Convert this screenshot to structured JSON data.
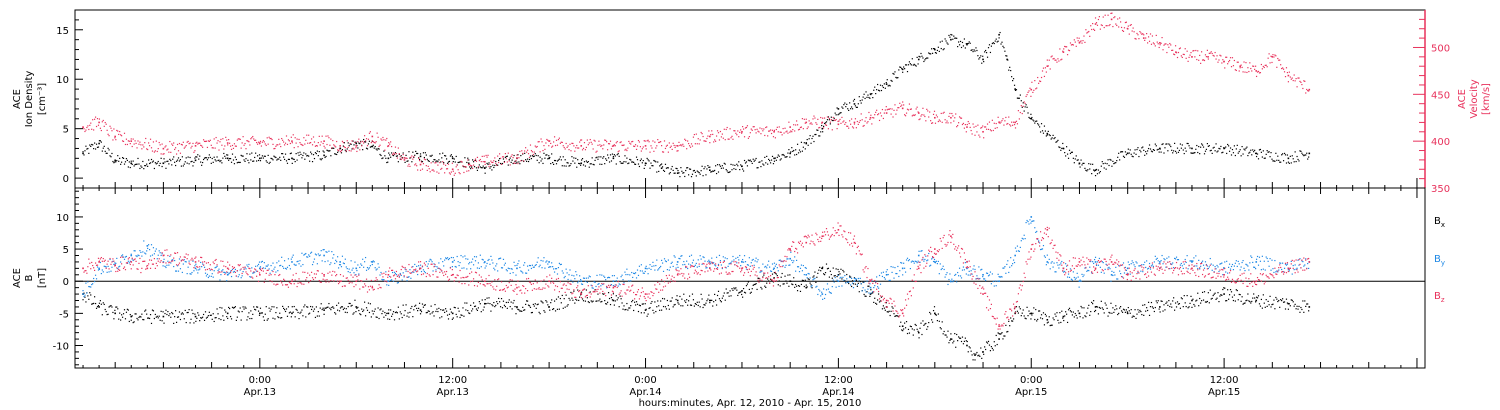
{
  "colors": {
    "black": "#000000",
    "pink": "#e8325c",
    "blue": "#1e88e5",
    "frame": "#000000",
    "background": "#ffffff"
  },
  "xaxis": {
    "label": "hours:minutes, Apr. 12, 2010 - Apr. 15, 2010",
    "range_hours": [
      -5.5,
      78.5
    ],
    "ticks": [
      {
        "hours": 6,
        "time": "0:00",
        "date": "Apr.13"
      },
      {
        "hours": 18,
        "time": "12:00",
        "date": "Apr.13"
      },
      {
        "hours": 30,
        "time": "0:00",
        "date": "Apr.14"
      },
      {
        "hours": 42,
        "time": "12:00",
        "date": "Apr.14"
      },
      {
        "hours": 54,
        "time": "0:00",
        "date": "Apr.15"
      },
      {
        "hours": 66,
        "time": "12:00",
        "date": "Apr.15"
      }
    ],
    "minor_step_hours": 1
  },
  "chart_data": [
    {
      "type": "scatter",
      "ylabel_left": [
        "ACE",
        "Ion Density",
        "[cm⁻³]"
      ],
      "ylabel_right": [
        "ACE",
        "Velocity",
        "[km/s]"
      ],
      "ylim_left": [
        -1,
        17
      ],
      "ylim_right": [
        350,
        540
      ],
      "yticks_left": [
        0,
        5,
        10,
        15
      ],
      "yticks_right": [
        350,
        400,
        450,
        500
      ],
      "series": [
        {
          "name": "",
          "axis": "left",
          "color": "black",
          "x": [
            -5,
            -4,
            -3,
            -2,
            0,
            2,
            4,
            6,
            8,
            10,
            11,
            12,
            13,
            14,
            16,
            18,
            19,
            20,
            22,
            24,
            26,
            28,
            30,
            31,
            32,
            34,
            36,
            38,
            39,
            40,
            41,
            42,
            43,
            44,
            45,
            46,
            47,
            48,
            49,
            50,
            51,
            52,
            52.5,
            53,
            54,
            55,
            56,
            57,
            58,
            60,
            62,
            64,
            66,
            68,
            70,
            71.3
          ],
          "y": [
            2.5,
            3.5,
            1.8,
            1.5,
            1.5,
            1.8,
            2.0,
            2.0,
            2.0,
            2.3,
            3.0,
            3.5,
            3.2,
            2.0,
            2.2,
            2.0,
            1.5,
            1.0,
            2.0,
            2.0,
            1.5,
            2.0,
            1.5,
            1.0,
            0.5,
            0.8,
            1.2,
            2.0,
            2.5,
            3.5,
            5.0,
            7.0,
            7.5,
            8.5,
            9.5,
            11.0,
            12.0,
            13.0,
            14.0,
            13.5,
            12.0,
            14.5,
            12.0,
            9.0,
            6.0,
            4.5,
            3.0,
            1.5,
            0.8,
            2.5,
            3.0,
            3.0,
            3.0,
            2.5,
            2.0,
            2.5
          ]
        },
        {
          "name": "",
          "axis": "right",
          "color": "pink",
          "x": [
            -5,
            -4,
            -3,
            -2,
            0,
            2,
            4,
            6,
            8,
            10,
            11,
            12,
            13,
            14,
            15,
            16,
            18,
            19,
            20,
            22,
            24,
            26,
            28,
            30,
            32,
            34,
            36,
            38,
            39,
            40,
            41,
            42,
            43,
            44,
            45,
            46,
            47,
            48,
            49,
            50,
            51,
            52,
            53,
            54,
            55,
            56,
            57,
            58,
            59,
            60,
            61,
            62,
            63,
            64,
            65,
            66,
            67,
            68,
            69,
            70,
            71.3
          ],
          "y": [
            415,
            420,
            405,
            400,
            392,
            395,
            398,
            398,
            400,
            400,
            395,
            395,
            405,
            395,
            380,
            375,
            370,
            375,
            378,
            382,
            400,
            395,
            395,
            395,
            395,
            405,
            410,
            410,
            415,
            420,
            420,
            418,
            420,
            425,
            430,
            435,
            430,
            425,
            425,
            415,
            410,
            420,
            420,
            455,
            480,
            495,
            505,
            525,
            530,
            520,
            510,
            505,
            495,
            490,
            490,
            485,
            480,
            475,
            490,
            470,
            455
          ]
        }
      ]
    },
    {
      "type": "scatter",
      "ylabel_left": [
        "ACE",
        "B",
        "[nT]"
      ],
      "ylim_left": [
        -13.5,
        14.5
      ],
      "yticks_left": [
        -10,
        -5,
        0,
        5,
        10
      ],
      "zero_line": true,
      "legend": [
        "Bx",
        "By",
        "Bz"
      ],
      "series": [
        {
          "name": "Bx",
          "color": "black",
          "x": [
            -5,
            -4,
            -3,
            -2,
            0,
            2,
            4,
            6,
            8,
            10,
            12,
            14,
            16,
            18,
            20,
            22,
            24,
            26,
            28,
            30,
            32,
            34,
            36,
            38,
            39,
            40,
            41,
            42,
            43,
            44,
            45,
            46,
            47,
            48,
            49,
            50,
            50.5,
            51,
            52,
            53,
            54,
            55,
            56,
            57,
            58,
            60,
            62,
            64,
            66,
            68,
            70,
            71.3
          ],
          "y": [
            -2,
            -4,
            -5,
            -5.5,
            -5.5,
            -5.5,
            -5,
            -5,
            -5,
            -4.5,
            -4,
            -5,
            -4.5,
            -5,
            -3.5,
            -4,
            -4,
            -2,
            -3,
            -4.5,
            -3,
            -3,
            -1.5,
            0.5,
            0,
            -1,
            2,
            1,
            0,
            -2,
            -4,
            -7,
            -8,
            -5,
            -9,
            -10,
            -11.5,
            -11,
            -9,
            -5,
            -5,
            -6,
            -5.5,
            -5,
            -4,
            -5,
            -4,
            -3,
            -2,
            -3,
            -3.5,
            -4
          ]
        },
        {
          "name": "By",
          "color": "blue",
          "x": [
            -5,
            -4,
            -3,
            -2,
            -1,
            0,
            2,
            4,
            6,
            8,
            10,
            11,
            12,
            13,
            14,
            16,
            18,
            20,
            22,
            24,
            26,
            28,
            30,
            32,
            34,
            36,
            38,
            39,
            40,
            41,
            42,
            43,
            44,
            45,
            46,
            47,
            48,
            49,
            50,
            51,
            52,
            53,
            54,
            55,
            56,
            57,
            58,
            59,
            60,
            62,
            64,
            66,
            68,
            70,
            71.3
          ],
          "y": [
            -2,
            2,
            2.5,
            4,
            5.5,
            3,
            2,
            1,
            2,
            3,
            4,
            3,
            2,
            3,
            0,
            2,
            3,
            3,
            2,
            3,
            0,
            0,
            2,
            3,
            3,
            3,
            2,
            3.5,
            1,
            -2,
            0,
            0,
            -1,
            1,
            2,
            4,
            3,
            0,
            2,
            1,
            0,
            4,
            10,
            3,
            2,
            0,
            3,
            1,
            2,
            3,
            3,
            2,
            3,
            2,
            3
          ]
        },
        {
          "name": "Bz",
          "color": "pink",
          "x": [
            -5,
            -4,
            -3,
            -2,
            -1,
            0,
            2,
            4,
            6,
            8,
            10,
            11,
            12,
            13,
            14,
            16,
            18,
            20,
            22,
            24,
            26,
            28,
            30,
            32,
            34,
            36,
            38,
            39,
            40,
            41,
            42,
            43,
            44,
            45,
            46,
            47,
            48,
            49,
            50,
            51,
            52,
            53,
            54,
            55,
            56,
            57,
            58,
            59,
            60,
            62,
            64,
            66,
            68,
            70,
            71.3
          ],
          "y": [
            2,
            3,
            2.5,
            3,
            2,
            4,
            3,
            2,
            1,
            0,
            1,
            0,
            0,
            -1,
            1,
            2,
            1,
            0,
            -1,
            0,
            -2,
            -1,
            -2,
            1,
            2,
            2,
            0,
            5,
            6,
            7,
            8,
            6,
            0,
            -3,
            -5,
            2,
            5,
            7,
            3,
            -2,
            -7,
            -4,
            5,
            8,
            2,
            3,
            2,
            3,
            1,
            2,
            2,
            1,
            0,
            2,
            3
          ]
        }
      ]
    }
  ]
}
